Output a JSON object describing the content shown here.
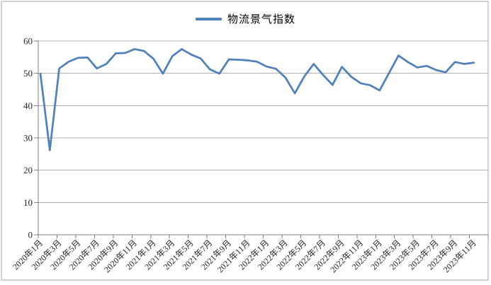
{
  "legend": {
    "label": "物流景气指数"
  },
  "colors": {
    "line": "#4f81bd",
    "gridline": "#b0b0b0",
    "axis": "#7f7f7f",
    "border": "#a6a6a6",
    "text": "#262626"
  },
  "chart_data": {
    "type": "line",
    "title": "",
    "legend_position": "top-center",
    "grid": true,
    "ylim": [
      0,
      60
    ],
    "yticks": [
      0,
      10,
      20,
      30,
      40,
      50,
      60
    ],
    "x_label_interval": 2,
    "x": [
      "2020年1月",
      "2020年2月",
      "2020年3月",
      "2020年4月",
      "2020年5月",
      "2020年6月",
      "2020年7月",
      "2020年8月",
      "2020年9月",
      "2020年10月",
      "2020年11月",
      "2020年12月",
      "2021年1月",
      "2021年2月",
      "2021年3月",
      "2021年4月",
      "2021年5月",
      "2021年6月",
      "2021年7月",
      "2021年8月",
      "2021年9月",
      "2021年10月",
      "2021年11月",
      "2021年12月",
      "2022年1月",
      "2022年2月",
      "2022年3月",
      "2022年4月",
      "2022年5月",
      "2022年6月",
      "2022年7月",
      "2022年8月",
      "2022年9月",
      "2022年10月",
      "2022年11月",
      "2022年12月",
      "2023年1月",
      "2023年2月",
      "2023年3月",
      "2023年4月",
      "2023年5月",
      "2023年6月",
      "2023年7月",
      "2023年8月",
      "2023年9月",
      "2023年10月",
      "2023年11月"
    ],
    "x_tick_labels": [
      "2020年1月",
      "2020年3月",
      "2020年5月",
      "2020年7月",
      "2020年9月",
      "2020年11月",
      "2021年1月",
      "2021年3月",
      "2021年5月",
      "2021年7月",
      "2021年9月",
      "2021年11月",
      "2022年1月",
      "2022年3月",
      "2022年5月",
      "2022年7月",
      "2022年9月",
      "2022年11月",
      "2023年1月",
      "2023年3月",
      "2023年5月",
      "2023年7月",
      "2023年9月",
      "2023年11月"
    ],
    "series": [
      {
        "name": "物流景气指数",
        "color": "#4f81bd",
        "values": [
          49.9,
          26.2,
          51.5,
          53.6,
          54.8,
          54.9,
          51.5,
          52.9,
          56.2,
          56.3,
          57.5,
          56.9,
          54.5,
          49.9,
          55.3,
          57.5,
          55.8,
          54.6,
          51.2,
          49.9,
          54.3,
          54.2,
          54.0,
          53.6,
          52.1,
          51.4,
          48.7,
          43.8,
          49.0,
          52.9,
          49.5,
          46.4,
          52.0,
          48.9,
          46.9,
          46.3,
          44.7,
          50.1,
          55.5,
          53.5,
          51.8,
          52.3,
          51.0,
          50.3,
          53.5,
          52.9,
          53.3
        ]
      }
    ]
  }
}
